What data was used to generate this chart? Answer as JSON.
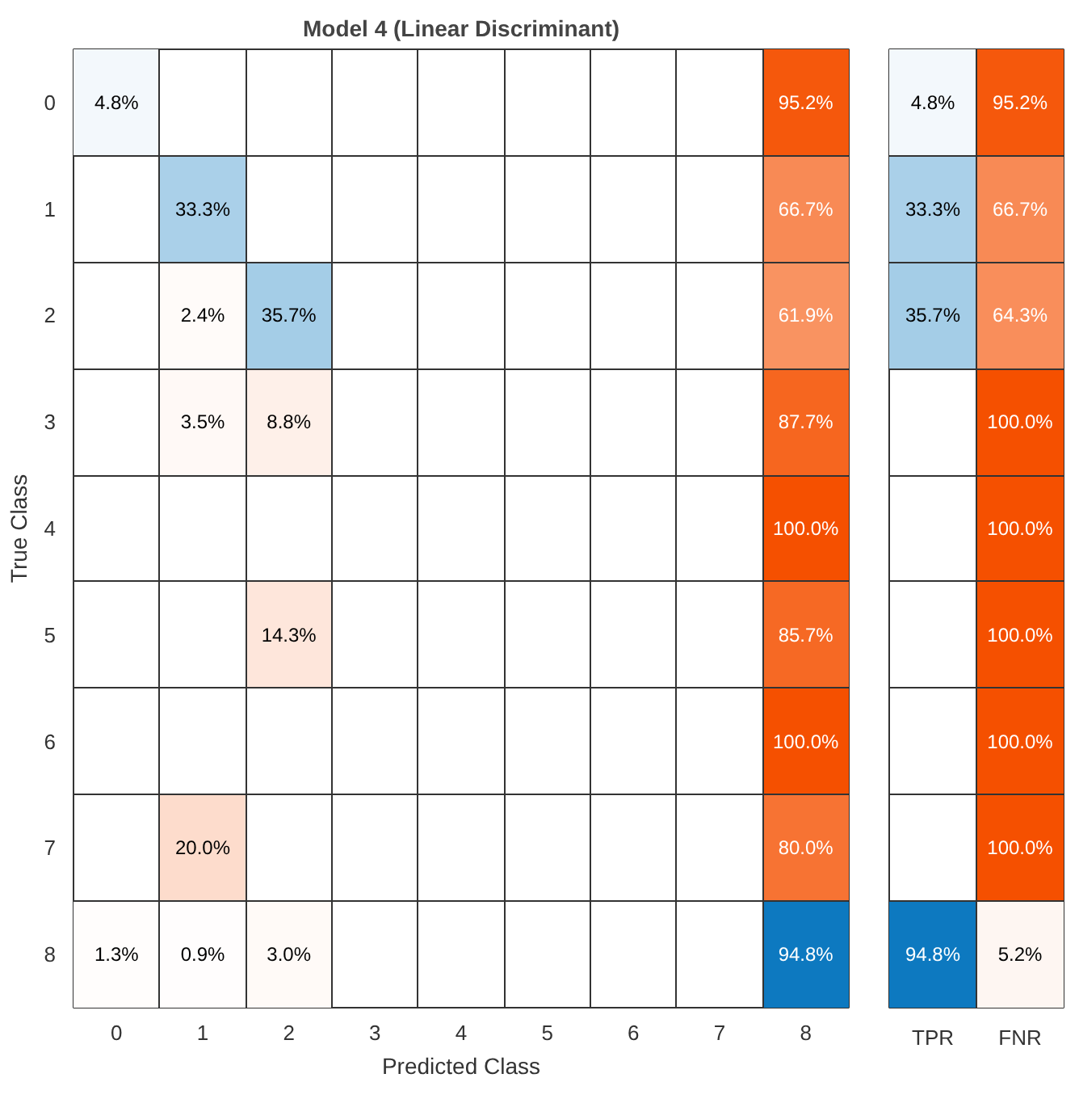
{
  "chart_data": [
    {
      "type": "heatmap",
      "title": "Model 4 (Linear Discriminant)",
      "xlabel": "Predicted Class",
      "ylabel": "True Class",
      "categories": [
        "0",
        "1",
        "2",
        "3",
        "4",
        "5",
        "6",
        "7",
        "8"
      ],
      "y_categories": [
        "0",
        "1",
        "2",
        "3",
        "4",
        "5",
        "6",
        "7",
        "8"
      ],
      "cells": [
        [
          4.8,
          null,
          null,
          null,
          null,
          null,
          null,
          null,
          95.2
        ],
        [
          null,
          33.3,
          null,
          null,
          null,
          null,
          null,
          null,
          66.7
        ],
        [
          null,
          2.4,
          35.7,
          null,
          null,
          null,
          null,
          null,
          61.9
        ],
        [
          null,
          3.5,
          8.8,
          null,
          null,
          null,
          null,
          null,
          87.7
        ],
        [
          null,
          null,
          null,
          null,
          null,
          null,
          null,
          null,
          100.0
        ],
        [
          null,
          null,
          14.3,
          null,
          null,
          null,
          null,
          null,
          85.7
        ],
        [
          null,
          null,
          null,
          null,
          null,
          null,
          null,
          null,
          100.0
        ],
        [
          null,
          20.0,
          null,
          null,
          null,
          null,
          null,
          null,
          80.0
        ],
        [
          1.3,
          0.9,
          3.0,
          null,
          null,
          null,
          null,
          null,
          94.8
        ]
      ],
      "cell_labels": [
        [
          "4.8%",
          null,
          null,
          null,
          null,
          null,
          null,
          null,
          "95.2%"
        ],
        [
          null,
          "33.3%",
          null,
          null,
          null,
          null,
          null,
          null,
          "66.7%"
        ],
        [
          null,
          "2.4%",
          "35.7%",
          null,
          null,
          null,
          null,
          null,
          "61.9%"
        ],
        [
          null,
          "3.5%",
          "8.8%",
          null,
          null,
          null,
          null,
          null,
          "87.7%"
        ],
        [
          null,
          null,
          null,
          null,
          null,
          null,
          null,
          null,
          "100.0%"
        ],
        [
          null,
          null,
          "14.3%",
          null,
          null,
          null,
          null,
          null,
          "85.7%"
        ],
        [
          null,
          null,
          null,
          null,
          null,
          null,
          null,
          null,
          "100.0%"
        ],
        [
          null,
          "20.0%",
          null,
          null,
          null,
          null,
          null,
          null,
          "80.0%"
        ],
        [
          "1.3%",
          "0.9%",
          "3.0%",
          null,
          null,
          null,
          null,
          null,
          "94.8%"
        ]
      ]
    },
    {
      "type": "heatmap",
      "categories": [
        "TPR",
        "FNR"
      ],
      "y_categories": [
        null,
        null,
        null,
        null,
        null,
        null,
        null,
        null,
        null
      ],
      "cells": [
        [
          4.8,
          95.2
        ],
        [
          33.3,
          66.7
        ],
        [
          35.7,
          64.3
        ],
        [
          null,
          100.0
        ],
        [
          null,
          100.0
        ],
        [
          null,
          100.0
        ],
        [
          null,
          100.0
        ],
        [
          null,
          100.0
        ],
        [
          94.8,
          5.2
        ]
      ],
      "cell_labels": [
        [
          "4.8%",
          "95.2%"
        ],
        [
          "33.3%",
          "66.7%"
        ],
        [
          "35.7%",
          "64.3%"
        ],
        [
          null,
          "100.0%"
        ],
        [
          null,
          "100.0%"
        ],
        [
          null,
          "100.0%"
        ],
        [
          null,
          "100.0%"
        ],
        [
          null,
          "100.0%"
        ],
        [
          "94.8%",
          "5.2%"
        ]
      ]
    }
  ]
}
